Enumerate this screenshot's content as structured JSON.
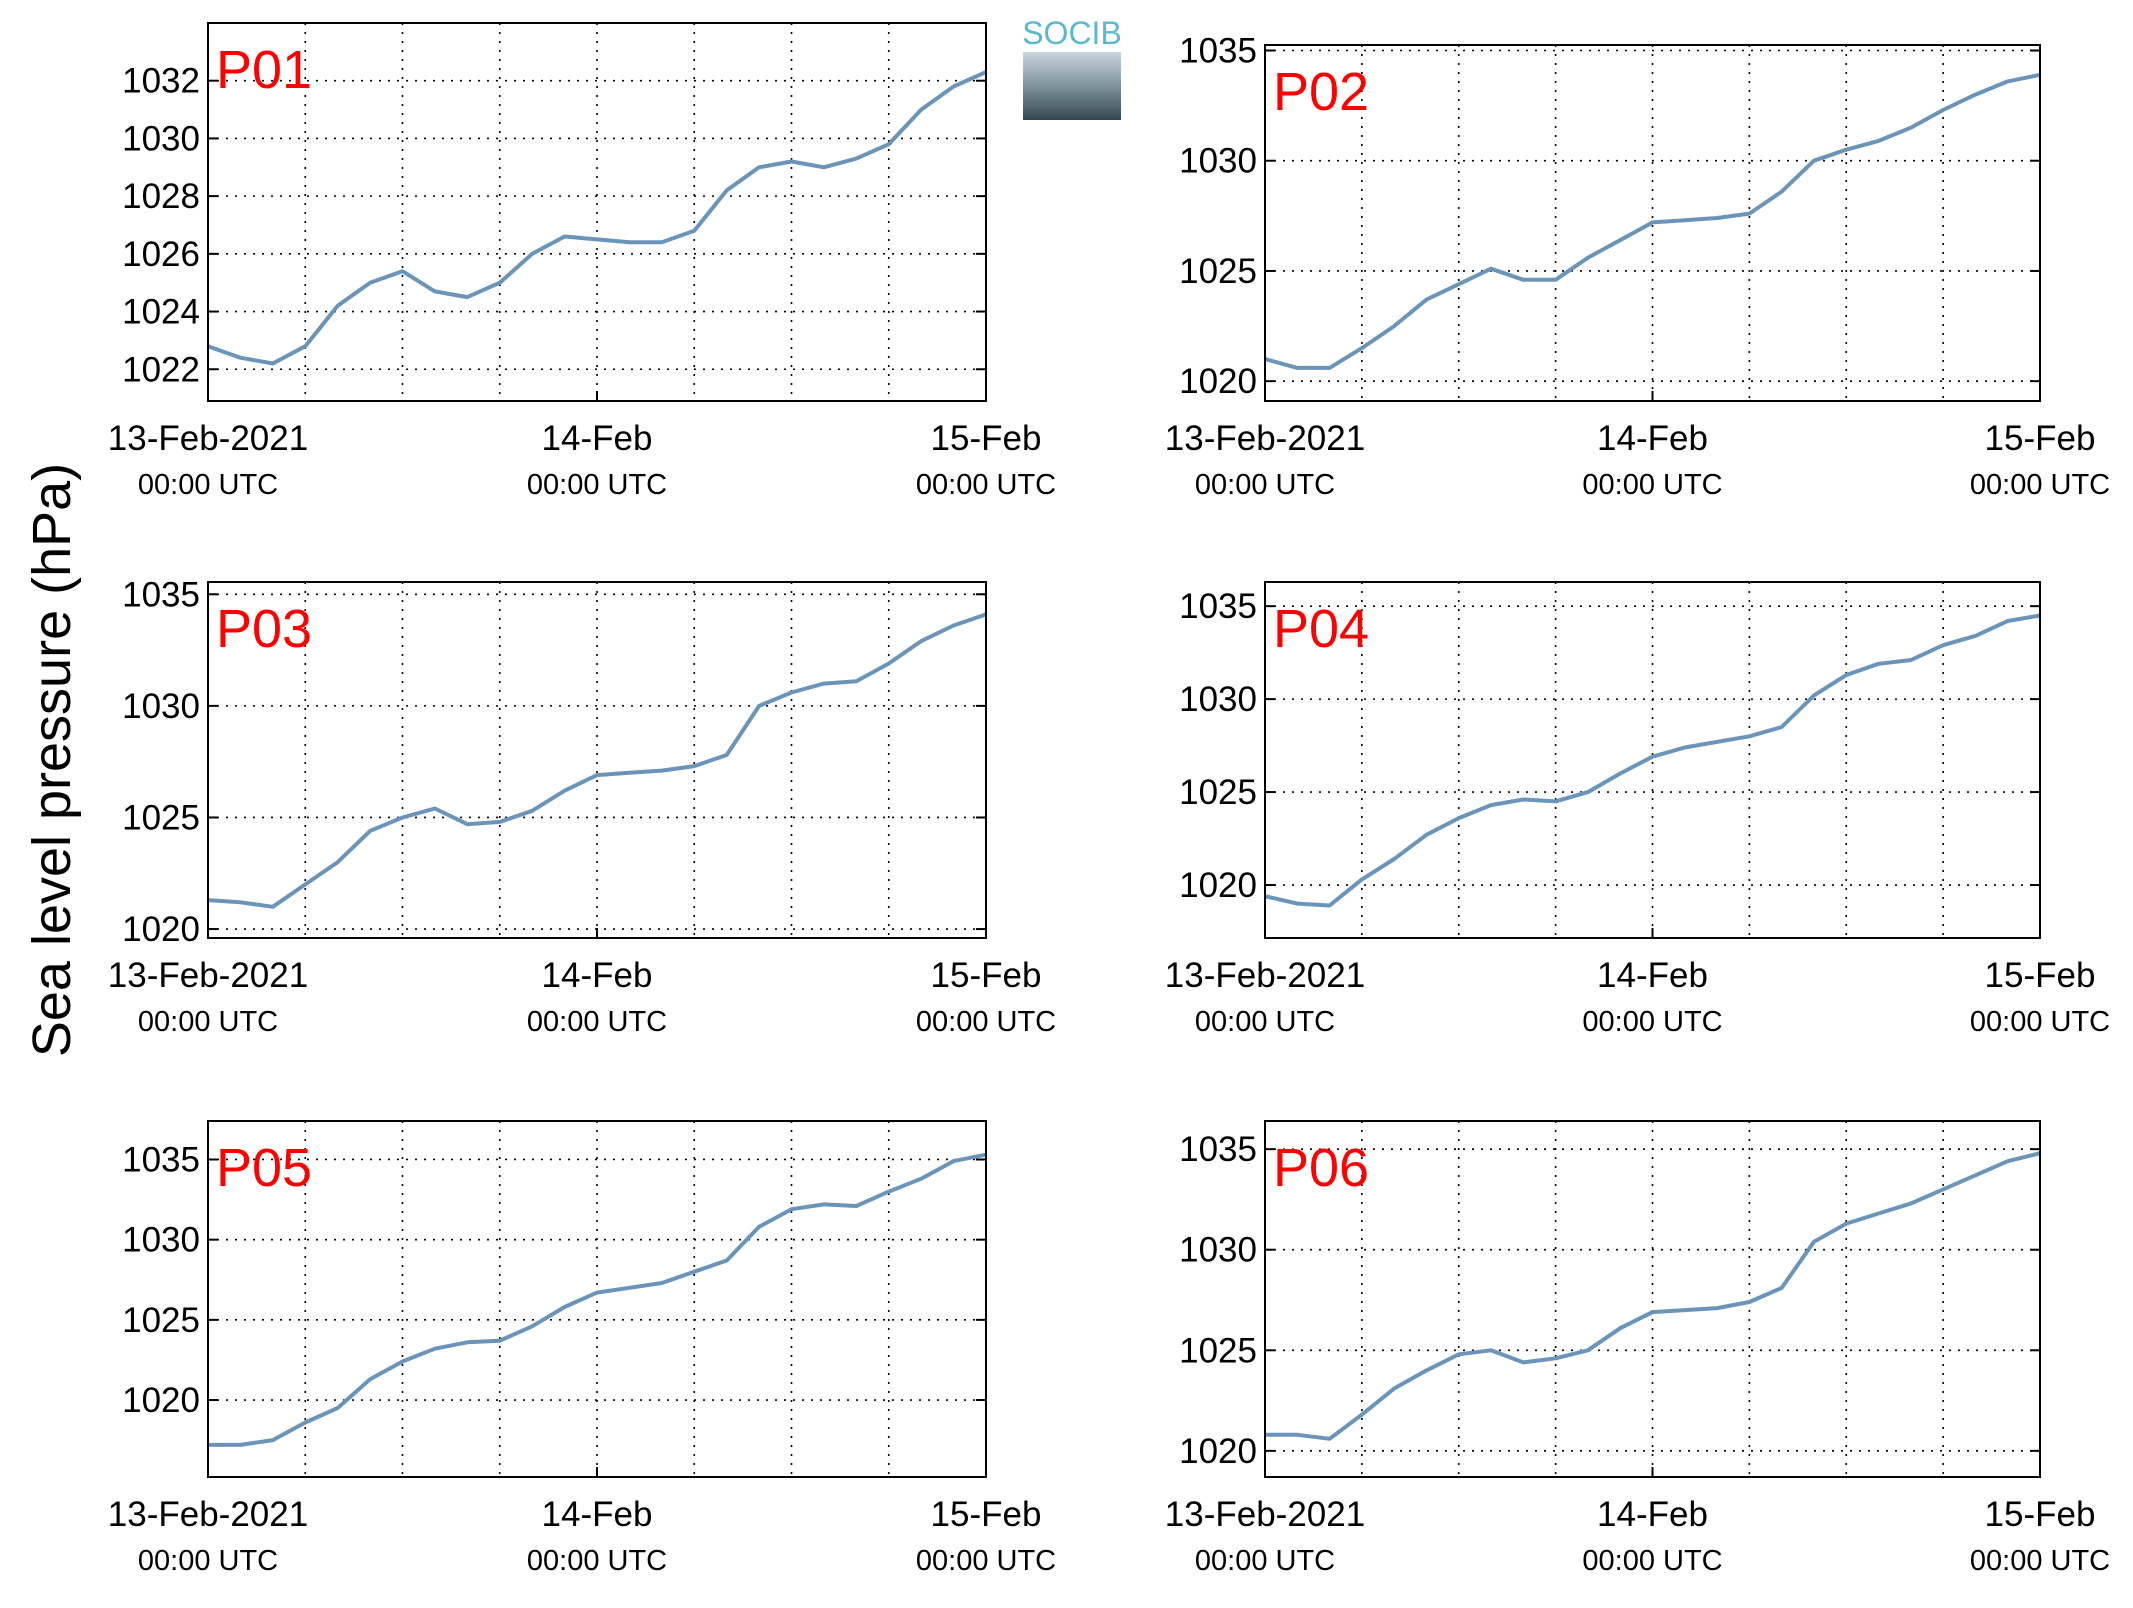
{
  "ylabel": "Sea level pressure (hPa)",
  "logo": "SOCIB",
  "chart_data": [
    {
      "type": "line",
      "title": "P01",
      "color": "#6a95b8",
      "grid": true,
      "x": [
        0,
        2,
        4,
        6,
        8,
        10,
        12,
        14,
        16,
        18,
        20,
        22,
        24,
        26,
        28,
        30,
        32,
        34,
        36,
        38,
        40,
        42,
        44,
        46,
        48
      ],
      "values": [
        1022.8,
        1022.4,
        1022.2,
        1022.8,
        1024.2,
        1025.0,
        1025.4,
        1024.7,
        1024.5,
        1025.0,
        1026.0,
        1026.6,
        1026.5,
        1026.4,
        1026.4,
        1026.8,
        1028.2,
        1029.0,
        1029.2,
        1029.0,
        1029.3,
        1029.8,
        1031.0,
        1031.8,
        1032.3
      ],
      "xlim": [
        0,
        48
      ],
      "xticks": [
        {
          "value": 0,
          "label": "13-Feb-2021"
        },
        {
          "value": 24,
          "label": "14-Feb"
        },
        {
          "value": 48,
          "label": "15-Feb"
        }
      ],
      "xtick_sublabels": [
        "00:00 UTC",
        "00:00 UTC",
        "00:00 UTC"
      ],
      "xminorticks": [
        6,
        12,
        18,
        30,
        36,
        42
      ],
      "ylim": [
        1020.9,
        1034.0
      ],
      "yticks": [
        1022,
        1024,
        1026,
        1028,
        1030,
        1032
      ]
    },
    {
      "type": "line",
      "title": "P02",
      "color": "#6a95b8",
      "grid": true,
      "x": [
        0,
        2,
        4,
        6,
        8,
        10,
        12,
        14,
        16,
        18,
        20,
        22,
        24,
        26,
        28,
        30,
        32,
        34,
        36,
        38,
        40,
        42,
        44,
        46,
        48
      ],
      "values": [
        1021.0,
        1020.6,
        1020.6,
        1021.5,
        1022.5,
        1023.7,
        1024.4,
        1025.1,
        1024.6,
        1024.6,
        1025.6,
        1026.4,
        1027.2,
        1027.3,
        1027.4,
        1027.6,
        1028.6,
        1030.0,
        1030.5,
        1030.9,
        1031.5,
        1032.3,
        1033.0,
        1033.6,
        1033.9
      ],
      "xlim": [
        0,
        48
      ],
      "xticks": [
        {
          "value": 0,
          "label": "13-Feb-2021"
        },
        {
          "value": 24,
          "label": "14-Feb"
        },
        {
          "value": 48,
          "label": "15-Feb"
        }
      ],
      "xtick_sublabels": [
        "00:00 UTC",
        "00:00 UTC",
        "00:00 UTC"
      ],
      "xminorticks": [
        6,
        12,
        18,
        30,
        36,
        42
      ],
      "ylim": [
        1019.1,
        1035.25
      ],
      "yticks": [
        1020,
        1025,
        1030,
        1035
      ]
    },
    {
      "type": "line",
      "title": "P03",
      "color": "#6a95b8",
      "grid": true,
      "x": [
        0,
        2,
        4,
        6,
        8,
        10,
        12,
        14,
        16,
        18,
        20,
        22,
        24,
        26,
        28,
        30,
        32,
        34,
        36,
        38,
        40,
        42,
        44,
        46,
        48
      ],
      "values": [
        1021.3,
        1021.2,
        1021.0,
        1022.0,
        1023.0,
        1024.4,
        1025.0,
        1025.4,
        1024.7,
        1024.8,
        1025.3,
        1026.2,
        1026.9,
        1027.0,
        1027.1,
        1027.3,
        1027.8,
        1030.0,
        1030.6,
        1031.0,
        1031.1,
        1031.9,
        1032.9,
        1033.6,
        1034.1
      ],
      "xlim": [
        0,
        48
      ],
      "xticks": [
        {
          "value": 0,
          "label": "13-Feb-2021"
        },
        {
          "value": 24,
          "label": "14-Feb"
        },
        {
          "value": 48,
          "label": "15-Feb"
        }
      ],
      "xtick_sublabels": [
        "00:00 UTC",
        "00:00 UTC",
        "00:00 UTC"
      ],
      "xminorticks": [
        6,
        12,
        18,
        30,
        36,
        42
      ],
      "ylim": [
        1019.6,
        1035.55
      ],
      "yticks": [
        1020,
        1025,
        1030,
        1035
      ]
    },
    {
      "type": "line",
      "title": "P04",
      "color": "#6a95b8",
      "grid": true,
      "x": [
        0,
        2,
        4,
        6,
        8,
        10,
        12,
        14,
        16,
        18,
        20,
        22,
        24,
        26,
        28,
        30,
        32,
        34,
        36,
        38,
        40,
        42,
        44,
        46,
        48
      ],
      "values": [
        1019.4,
        1019.0,
        1018.9,
        1020.3,
        1021.4,
        1022.7,
        1023.6,
        1024.3,
        1024.6,
        1024.5,
        1025.0,
        1026.0,
        1026.9,
        1027.4,
        1027.7,
        1028.0,
        1028.5,
        1030.2,
        1031.3,
        1031.9,
        1032.1,
        1032.9,
        1033.4,
        1034.2,
        1034.5
      ],
      "xlim": [
        0,
        48
      ],
      "xticks": [
        {
          "value": 0,
          "label": "13-Feb-2021"
        },
        {
          "value": 24,
          "label": "14-Feb"
        },
        {
          "value": 48,
          "label": "15-Feb"
        }
      ],
      "xtick_sublabels": [
        "00:00 UTC",
        "00:00 UTC",
        "00:00 UTC"
      ],
      "xminorticks": [
        6,
        12,
        18,
        30,
        36,
        42
      ],
      "ylim": [
        1017.15,
        1036.3
      ],
      "yticks": [
        1020,
        1025,
        1030,
        1035
      ]
    },
    {
      "type": "line",
      "title": "P05",
      "color": "#6a95b8",
      "grid": true,
      "x": [
        0,
        2,
        4,
        6,
        8,
        10,
        12,
        14,
        16,
        18,
        20,
        22,
        24,
        26,
        28,
        30,
        32,
        34,
        36,
        38,
        40,
        42,
        44,
        46,
        48
      ],
      "values": [
        1017.2,
        1017.2,
        1017.5,
        1018.6,
        1019.5,
        1021.3,
        1022.4,
        1023.2,
        1023.6,
        1023.7,
        1024.6,
        1025.8,
        1026.7,
        1027.0,
        1027.3,
        1028.0,
        1028.7,
        1030.8,
        1031.9,
        1032.2,
        1032.1,
        1033.0,
        1033.8,
        1034.9,
        1035.3
      ],
      "xlim": [
        0,
        48
      ],
      "xticks": [
        {
          "value": 0,
          "label": "13-Feb-2021"
        },
        {
          "value": 24,
          "label": "14-Feb"
        },
        {
          "value": 48,
          "label": "15-Feb"
        }
      ],
      "xtick_sublabels": [
        "00:00 UTC",
        "00:00 UTC",
        "00:00 UTC"
      ],
      "xminorticks": [
        6,
        12,
        18,
        30,
        36,
        42
      ],
      "ylim": [
        1015.2,
        1037.4
      ],
      "yticks": [
        1020,
        1025,
        1030,
        1035
      ]
    },
    {
      "type": "line",
      "title": "P06",
      "color": "#6a95b8",
      "grid": true,
      "x": [
        0,
        2,
        4,
        6,
        8,
        10,
        12,
        14,
        16,
        18,
        20,
        22,
        24,
        26,
        28,
        30,
        32,
        34,
        36,
        38,
        40,
        42,
        44,
        46,
        48
      ],
      "values": [
        1020.8,
        1020.8,
        1020.6,
        1021.8,
        1023.1,
        1024.0,
        1024.8,
        1025.0,
        1024.4,
        1024.6,
        1025.0,
        1026.1,
        1026.9,
        1027.0,
        1027.1,
        1027.4,
        1028.1,
        1030.4,
        1031.3,
        1031.8,
        1032.3,
        1033.0,
        1033.7,
        1034.4,
        1034.8
      ],
      "xlim": [
        0,
        48
      ],
      "xticks": [
        {
          "value": 0,
          "label": "13-Feb-2021"
        },
        {
          "value": 24,
          "label": "14-Feb"
        },
        {
          "value": 48,
          "label": "15-Feb"
        }
      ],
      "xtick_sublabels": [
        "00:00 UTC",
        "00:00 UTC",
        "00:00 UTC"
      ],
      "xminorticks": [
        6,
        12,
        18,
        30,
        36,
        42
      ],
      "ylim": [
        1018.7,
        1036.4
      ],
      "yticks": [
        1020,
        1025,
        1030,
        1035
      ]
    }
  ]
}
